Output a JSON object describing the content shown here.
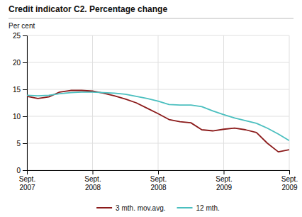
{
  "chart_data": {
    "type": "line",
    "title": "Credit indicator C2. Percentage change",
    "ylabel": "Per cent",
    "categories": [
      "Sept.\n2007",
      null,
      null,
      null,
      null,
      null,
      "Sept.\n2008",
      null,
      null,
      null,
      null,
      null,
      "Sept.\n2008",
      null,
      null,
      null,
      null,
      null,
      "Sept.\n2009",
      null,
      null,
      null,
      null,
      null,
      "Sept.\n2009"
    ],
    "series": [
      {
        "name": "3 mth. mov.avg.",
        "color": "#8b1a1a",
        "values": [
          13.7,
          13.3,
          13.6,
          14.5,
          14.8,
          14.8,
          14.7,
          14.3,
          13.8,
          13.2,
          12.5,
          11.5,
          10.5,
          9.4,
          9.0,
          8.8,
          7.5,
          7.3,
          7.6,
          7.8,
          7.5,
          7.0,
          5.0,
          3.4,
          3.8
        ]
      },
      {
        "name": "12 mth.",
        "color": "#4bbfbf",
        "values": [
          13.9,
          13.8,
          13.9,
          14.2,
          14.4,
          14.5,
          14.5,
          14.4,
          14.3,
          14.1,
          13.7,
          13.3,
          12.8,
          12.2,
          12.1,
          12.1,
          11.8,
          11.0,
          10.3,
          9.7,
          9.2,
          8.7,
          7.8,
          6.7,
          5.5
        ]
      }
    ],
    "ylim": [
      0,
      25
    ],
    "yticks": [
      0,
      5,
      10,
      15,
      20,
      25
    ],
    "grid": true,
    "legend": "bottom"
  }
}
